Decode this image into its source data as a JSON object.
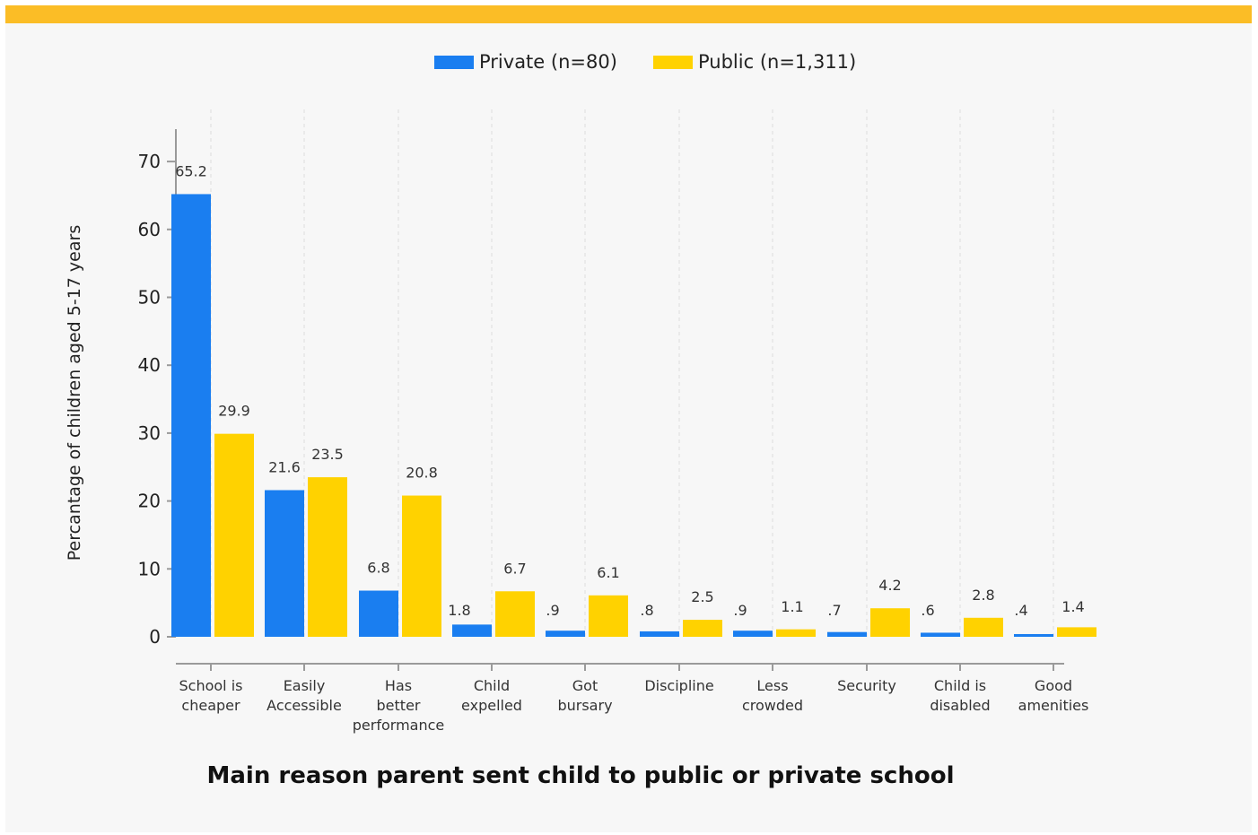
{
  "colors": {
    "private": "#1a7ef0",
    "public": "#ffd200",
    "topbar": "#fbbd26",
    "background": "#f7f7f7"
  },
  "chart_data": {
    "type": "bar",
    "title": "Main reason parent sent child to public or private school",
    "ylabel": "Percantage of children aged 5-17 years",
    "xlabel": "",
    "ylim": [
      0,
      75
    ],
    "yticks": [
      0,
      10,
      20,
      30,
      40,
      50,
      60,
      70
    ],
    "grid": "vertical dashed",
    "legend_position": "top-center",
    "categories": [
      [
        "School is",
        "cheaper"
      ],
      [
        "Easily",
        "Accessible"
      ],
      [
        "Has",
        "better",
        "performance"
      ],
      [
        "Child",
        "expelled"
      ],
      [
        "Got",
        "bursary"
      ],
      [
        "Discipline"
      ],
      [
        "Less",
        "crowded"
      ],
      [
        "Security"
      ],
      [
        "Child is",
        "disabled"
      ],
      [
        "Good",
        "amenities"
      ]
    ],
    "series": [
      {
        "name": "Private (n=80)",
        "color": "#1a7ef0",
        "values": [
          65.2,
          21.6,
          6.8,
          1.8,
          0.9,
          0.8,
          0.9,
          0.7,
          0.6,
          0.4
        ],
        "labels": [
          "65.2",
          "21.6",
          "6.8",
          "1.8",
          ".9",
          ".8",
          ".9",
          ".7",
          ".6",
          ".4"
        ]
      },
      {
        "name": "Public (n=1,311)",
        "color": "#ffd200",
        "values": [
          29.9,
          23.5,
          20.8,
          6.7,
          6.1,
          2.5,
          1.1,
          4.2,
          2.8,
          1.4
        ],
        "labels": [
          "29.9",
          "23.5",
          "20.8",
          "6.7",
          "6.1",
          "2.5",
          "1.1",
          "4.2",
          "2.8",
          "1.4"
        ]
      }
    ]
  }
}
